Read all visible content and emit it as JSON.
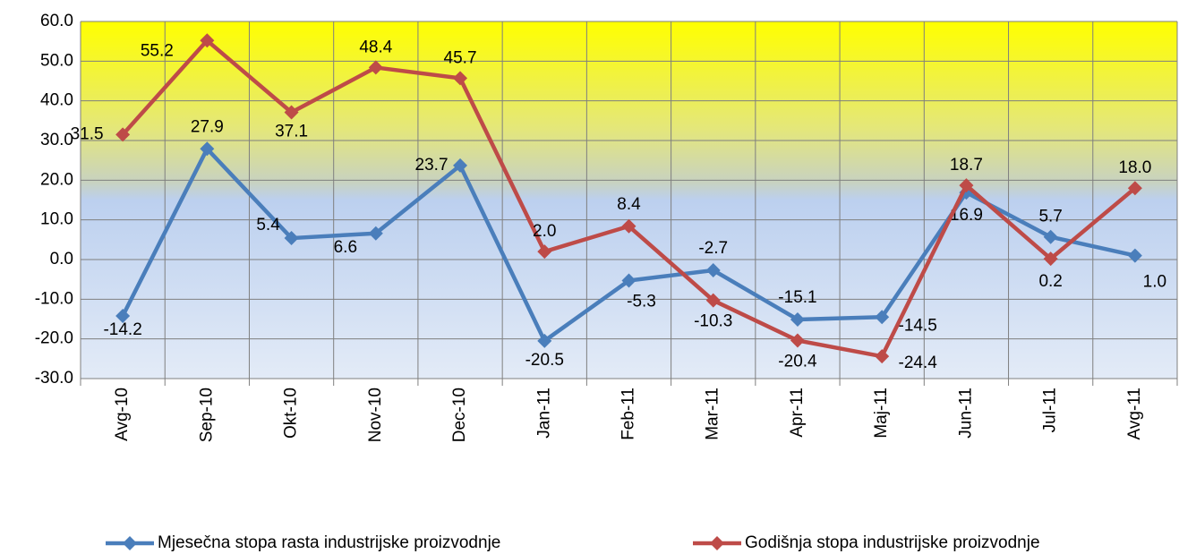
{
  "chart_data": {
    "type": "line",
    "categories": [
      "Avg-10",
      "Sep-10",
      "Okt-10",
      "Nov-10",
      "Dec-10",
      "Jan-11",
      "Feb-11",
      "Mar-11",
      "Apr-11",
      "Maj-11",
      "Jun-11",
      "Jul-11",
      "Avg-11"
    ],
    "series": [
      {
        "name": "Mjesečna stopa rasta industrijske proizvodnje",
        "color": "#4a7ebb",
        "values": [
          -14.2,
          27.9,
          5.4,
          6.6,
          23.7,
          -20.5,
          -5.3,
          -2.7,
          -15.1,
          -14.5,
          16.9,
          5.7,
          1.0
        ],
        "value_labels": [
          "-14.2",
          "27.9",
          "5.4",
          "6.6",
          "23.7",
          "-20.5",
          "-5.3",
          "-2.7",
          "-15.1",
          "-14.5",
          "16.9",
          "5.7",
          "1.0"
        ]
      },
      {
        "name": "Godišnja stopa industrijske proizvodnje",
        "color": "#be4b48",
        "values": [
          31.5,
          55.2,
          37.1,
          48.4,
          45.7,
          2.0,
          8.4,
          -10.3,
          -20.4,
          -24.4,
          18.7,
          0.2,
          18.0
        ],
        "value_labels": [
          "31.5",
          "55.2",
          "37.1",
          "48.4",
          "45.7",
          "2.0",
          "8.4",
          "-10.3",
          "-20.4",
          "-24.4",
          "18.7",
          "0.2",
          "18.0"
        ]
      }
    ],
    "ylim": [
      -30,
      60
    ],
    "yticks": [
      {
        "value": -30,
        "label": "-30.0"
      },
      {
        "value": -20,
        "label": "-20.0"
      },
      {
        "value": -10,
        "label": "-10.0"
      },
      {
        "value": 0,
        "label": "0.0"
      },
      {
        "value": 10,
        "label": "10.0"
      },
      {
        "value": 20,
        "label": "20.0"
      },
      {
        "value": 30,
        "label": "30.0"
      },
      {
        "value": 40,
        "label": "40.0"
      },
      {
        "value": 50,
        "label": "50.0"
      },
      {
        "value": 60,
        "label": "60.0"
      }
    ],
    "grid": true,
    "legend": "bottom"
  }
}
